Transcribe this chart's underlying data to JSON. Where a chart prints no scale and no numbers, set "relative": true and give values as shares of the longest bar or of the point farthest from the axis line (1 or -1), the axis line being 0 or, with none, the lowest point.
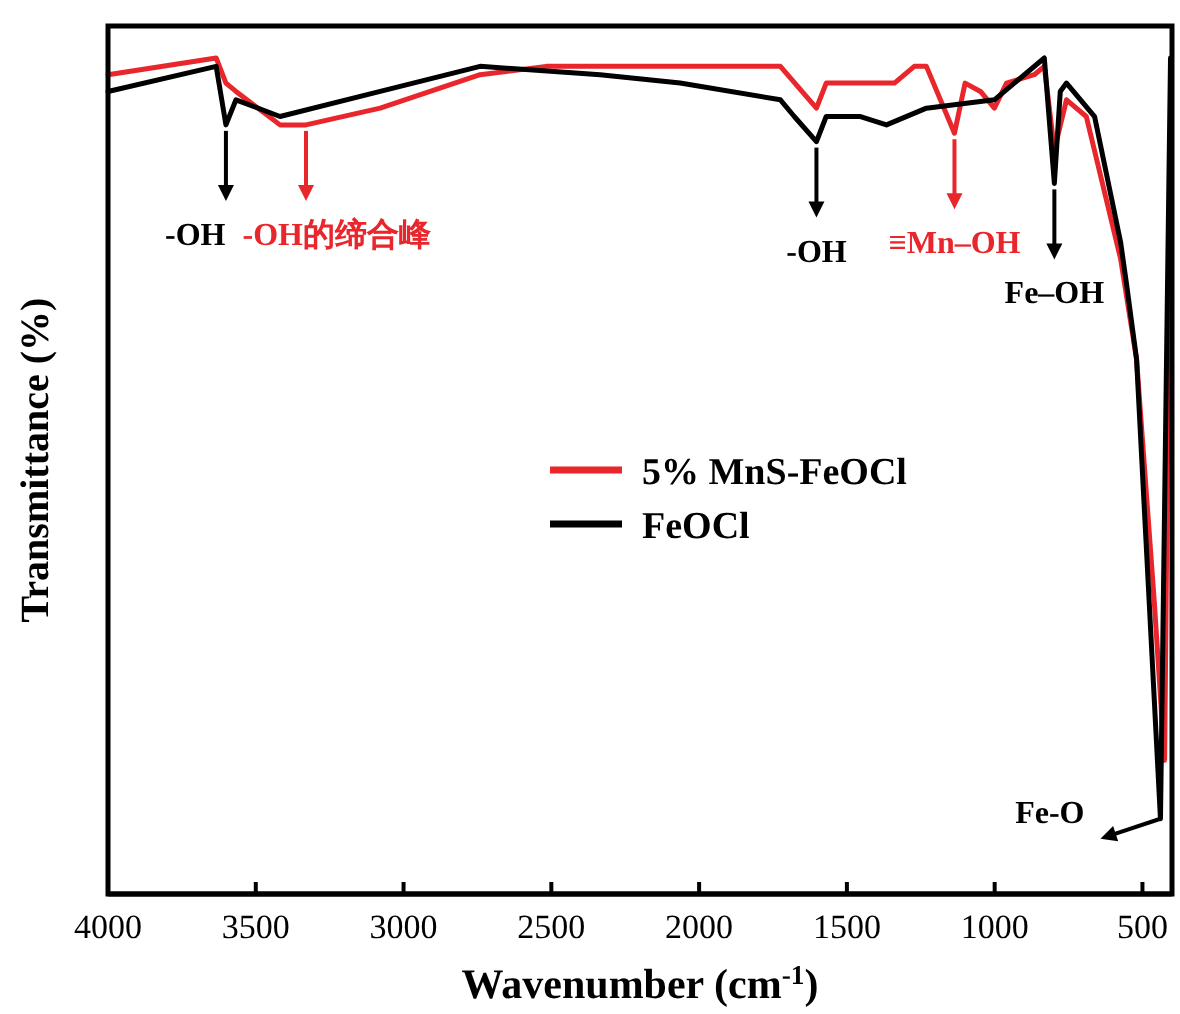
{
  "chart_data": {
    "type": "line",
    "relative": true,
    "xlabel": "Wavenumber (cm$^{-1}$)",
    "ylabel": "Transmittance (%)",
    "xlim": [
      4000,
      400
    ],
    "xticks": [
      4000,
      3500,
      3000,
      2500,
      2000,
      1500,
      1000,
      500
    ],
    "legend": "right",
    "grid": false,
    "line_style": "solid",
    "series": [
      {
        "name": "5% MnS-FeOCl",
        "color": "#e8262b",
        "x": [
          4000,
          3634,
          3601,
          3567,
          3418,
          3330,
          3079,
          2741,
          2517,
          2064,
          1725,
          1603,
          1570,
          1339,
          1272,
          1231,
          1136,
          1100,
          1048,
          1001,
          960,
          866,
          832,
          798,
          757,
          690,
          574,
          520,
          460,
          425,
          405
        ],
        "values": [
          0.98,
          1.0,
          0.97,
          0.96,
          0.92,
          0.92,
          0.94,
          0.98,
          0.99,
          0.99,
          0.99,
          0.94,
          0.97,
          0.97,
          0.99,
          0.99,
          0.91,
          0.97,
          0.96,
          0.94,
          0.97,
          0.98,
          0.99,
          0.89,
          0.95,
          0.93,
          0.76,
          0.64,
          0.35,
          0.16,
          0.9
        ]
      },
      {
        "name": "FeOCl",
        "color": "#000000",
        "x": [
          4000,
          3634,
          3601,
          3567,
          3418,
          3079,
          2741,
          2335,
          2064,
          1725,
          1678,
          1603,
          1570,
          1454,
          1366,
          1231,
          1001,
          832,
          798,
          778,
          757,
          662,
          574,
          554,
          520,
          439,
          405
        ],
        "values": [
          0.96,
          0.99,
          0.92,
          0.95,
          0.93,
          0.96,
          0.99,
          0.98,
          0.97,
          0.95,
          0.93,
          0.9,
          0.93,
          0.93,
          0.92,
          0.94,
          0.95,
          1.0,
          0.85,
          0.96,
          0.97,
          0.93,
          0.78,
          0.73,
          0.64,
          0.09,
          1.0
        ]
      }
    ],
    "annotations": [
      {
        "text": "-OH",
        "x": 3601,
        "y": 0.92
      },
      {
        "text": "-OH的缔合峰",
        "x": 3330,
        "y": 0.92
      },
      {
        "text": "-OH",
        "x": 1603,
        "y": 0.9
      },
      {
        "text": "≡Mn–OH",
        "x": 1136,
        "y": 0.91
      },
      {
        "text": "Fe–OH",
        "x": 798,
        "y": 0.85
      },
      {
        "text": "Fe-O",
        "x": 439,
        "y": 0.09
      }
    ]
  }
}
